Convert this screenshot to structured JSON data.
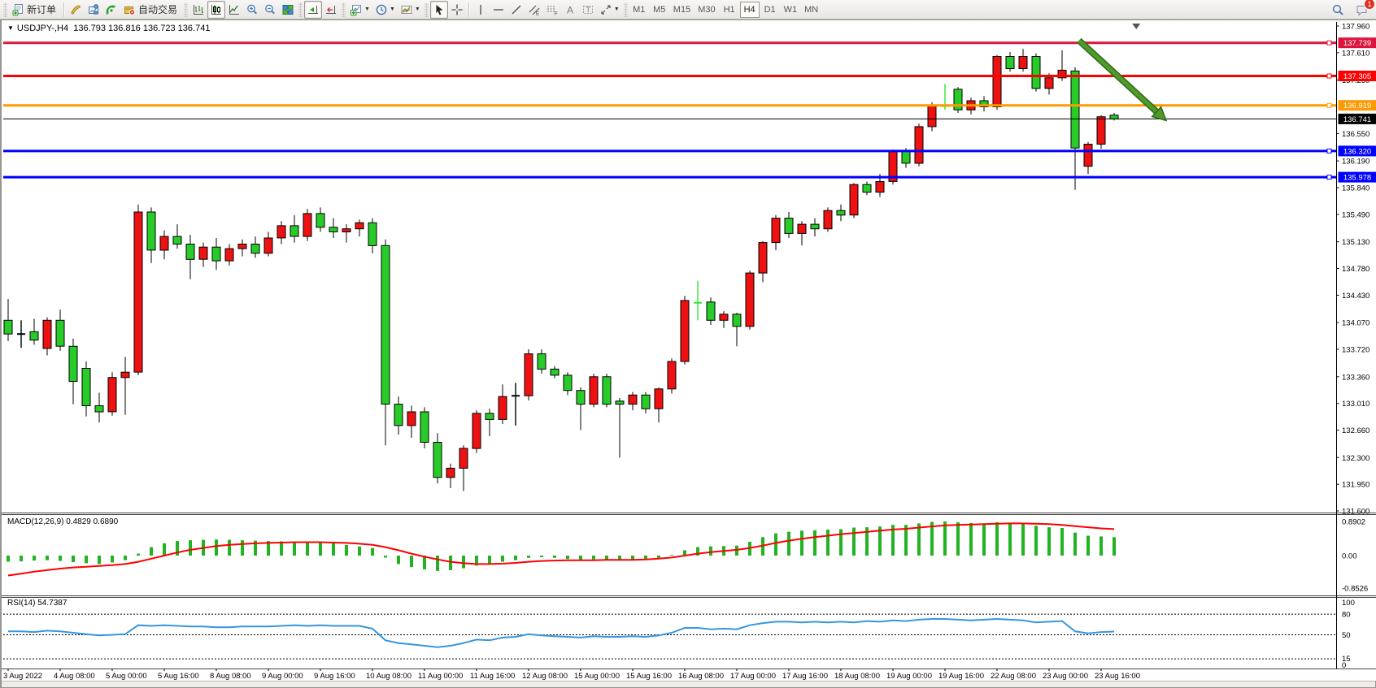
{
  "toolbar": {
    "new_order_label": "新订单",
    "auto_trading_label": "自动交易",
    "timeframes": [
      "M1",
      "M5",
      "M15",
      "M30",
      "H1",
      "H4",
      "D1",
      "W1",
      "MN"
    ],
    "active_timeframe": "H4",
    "notification_badge": "1",
    "icon_names": [
      "new-order-icon",
      "metaeditor-icon",
      "strategy-tester-icon",
      "signals-icon",
      "autotrading-icon",
      "bar-chart-icon",
      "candlestick-chart-icon",
      "line-chart-icon",
      "zoom-in-icon",
      "zoom-out-icon",
      "tile-windows-icon",
      "auto-scroll-icon",
      "chart-shift-icon",
      "new-chart-icon",
      "periods-icon",
      "templates-icon",
      "cursor-icon",
      "crosshair-icon",
      "vertical-line-icon",
      "horizontal-line-icon",
      "trendline-icon",
      "equidistant-channel-icon",
      "fibonacci-icon",
      "text-icon",
      "text-label-icon",
      "arrows-icon",
      "search-icon",
      "notifications-icon"
    ]
  },
  "chart": {
    "title_symbol": "USDJPY-,H4",
    "title_ohlc": "136.793 136.816 136.723 136.741",
    "macd_label": "MACD(12,26,9) 0.4829 0.6890",
    "rsi_label": "RSI(14) 54.7387"
  },
  "colors": {
    "up": "#ee1111",
    "down": "#28cc28",
    "doji_lime": "#35e435",
    "doji_black": "#000000",
    "wick": "#000000",
    "macd_hist": "#21b321",
    "macd_signal": "#ff0000",
    "rsi_line": "#3596e0",
    "line_crimson": "#dc143c",
    "line_red": "#ff0000",
    "line_orange": "#ff9900",
    "line_blue": "#0000ff",
    "current_price_line": "#000000",
    "arrow_green": "#4f9a2b",
    "arrow_border": "#2e6b14",
    "bg": "#ffffff",
    "axis_text": "#000000"
  },
  "chart_data": [
    {
      "type": "candlestick",
      "title": "USDJPY- H4",
      "ylim": [
        131.6,
        137.96
      ],
      "grid": false,
      "price_ticks": [
        "137.960",
        "137.610",
        "137.250",
        "136.550",
        "136.190",
        "135.840",
        "135.490",
        "135.130",
        "134.780",
        "134.430",
        "134.070",
        "133.720",
        "133.360",
        "133.010",
        "132.660",
        "132.300",
        "131.950",
        "131.600"
      ],
      "time_labels": [
        "3 Aug 2022",
        "4 Aug 08:00",
        "5 Aug 00:00",
        "5 Aug 16:00",
        "8 Aug 08:00",
        "9 Aug 00:00",
        "9 Aug 16:00",
        "10 Aug 08:00",
        "11 Aug 00:00",
        "11 Aug 16:00",
        "12 Aug 08:00",
        "15 Aug 00:00",
        "15 Aug 16:00",
        "16 Aug 08:00",
        "17 Aug 00:00",
        "17 Aug 16:00",
        "18 Aug 08:00",
        "19 Aug 00:00",
        "19 Aug 16:00",
        "22 Aug 08:00",
        "23 Aug 00:00",
        "23 Aug 16:00"
      ],
      "bars_per_label": 4,
      "candles": [
        [
          134.1,
          134.38,
          133.83,
          133.92
        ],
        [
          133.92,
          134.1,
          133.74,
          133.92
        ],
        [
          133.95,
          134.12,
          133.78,
          133.84
        ],
        [
          133.73,
          134.14,
          133.64,
          134.1
        ],
        [
          134.1,
          134.24,
          133.7,
          133.76
        ],
        [
          133.76,
          133.86,
          133.0,
          133.3
        ],
        [
          133.47,
          133.56,
          132.84,
          132.98
        ],
        [
          132.98,
          133.15,
          132.76,
          132.9
        ],
        [
          132.9,
          133.42,
          132.85,
          133.35
        ],
        [
          133.35,
          133.62,
          132.86,
          133.42
        ],
        [
          133.42,
          135.62,
          133.38,
          135.52
        ],
        [
          135.52,
          135.58,
          134.85,
          135.02
        ],
        [
          135.02,
          135.28,
          134.9,
          135.2
        ],
        [
          135.2,
          135.36,
          135.04,
          135.1
        ],
        [
          135.1,
          135.22,
          134.64,
          134.9
        ],
        [
          134.9,
          135.12,
          134.8,
          135.06
        ],
        [
          135.06,
          135.18,
          134.76,
          134.88
        ],
        [
          134.88,
          135.1,
          134.82,
          135.04
        ],
        [
          135.04,
          135.16,
          134.94,
          135.1
        ],
        [
          135.1,
          135.2,
          134.92,
          134.98
        ],
        [
          134.98,
          135.26,
          134.94,
          135.18
        ],
        [
          135.18,
          135.4,
          135.1,
          135.34
        ],
        [
          135.34,
          135.48,
          135.12,
          135.2
        ],
        [
          135.2,
          135.56,
          135.14,
          135.5
        ],
        [
          135.5,
          135.58,
          135.26,
          135.32
        ],
        [
          135.32,
          135.44,
          135.18,
          135.26
        ],
        [
          135.26,
          135.36,
          135.12,
          135.3
        ],
        [
          135.3,
          135.42,
          135.2,
          135.38
        ],
        [
          135.38,
          135.44,
          134.98,
          135.08
        ],
        [
          135.08,
          135.16,
          132.46,
          133.0
        ],
        [
          133.0,
          133.1,
          132.6,
          132.72
        ],
        [
          132.72,
          132.98,
          132.56,
          132.9
        ],
        [
          132.9,
          132.96,
          132.42,
          132.5
        ],
        [
          132.5,
          132.62,
          131.96,
          132.04
        ],
        [
          132.04,
          132.22,
          131.9,
          132.16
        ],
        [
          132.16,
          132.46,
          131.86,
          132.42
        ],
        [
          132.42,
          132.92,
          132.36,
          132.88
        ],
        [
          132.88,
          132.94,
          132.58,
          132.8
        ],
        [
          132.8,
          133.26,
          132.74,
          133.1
        ],
        [
          133.1,
          133.28,
          132.72,
          133.11
        ],
        [
          133.11,
          133.72,
          133.05,
          133.66
        ],
        [
          133.66,
          133.72,
          133.4,
          133.46
        ],
        [
          133.46,
          133.5,
          133.34,
          133.38
        ],
        [
          133.38,
          133.42,
          133.12,
          133.18
        ],
        [
          133.18,
          133.22,
          132.66,
          133.0
        ],
        [
          133.0,
          133.4,
          132.96,
          133.36
        ],
        [
          133.36,
          133.4,
          132.96,
          133.0
        ],
        [
          133.04,
          133.08,
          132.3,
          133.0
        ],
        [
          133.0,
          133.16,
          132.92,
          133.12
        ],
        [
          133.12,
          133.16,
          132.88,
          132.94
        ],
        [
          132.94,
          133.22,
          132.76,
          133.2
        ],
        [
          133.2,
          133.6,
          133.14,
          133.56
        ],
        [
          133.56,
          134.42,
          133.52,
          134.36
        ],
        [
          134.35,
          134.62,
          134.1,
          134.33
        ],
        [
          134.34,
          134.4,
          134.04,
          134.1
        ],
        [
          134.1,
          134.22,
          134.0,
          134.18
        ],
        [
          134.18,
          134.2,
          133.76,
          134.02
        ],
        [
          134.02,
          134.75,
          133.98,
          134.72
        ],
        [
          134.72,
          135.14,
          134.6,
          135.12
        ],
        [
          135.12,
          135.48,
          135.02,
          135.44
        ],
        [
          135.44,
          135.52,
          135.18,
          135.24
        ],
        [
          135.24,
          135.4,
          135.08,
          135.36
        ],
        [
          135.36,
          135.44,
          135.2,
          135.3
        ],
        [
          135.3,
          135.58,
          135.26,
          135.54
        ],
        [
          135.54,
          135.62,
          135.4,
          135.48
        ],
        [
          135.48,
          135.9,
          135.44,
          135.88
        ],
        [
          135.88,
          135.92,
          135.74,
          135.78
        ],
        [
          135.78,
          136.02,
          135.72,
          135.92
        ],
        [
          135.92,
          136.34,
          135.88,
          136.32
        ],
        [
          136.32,
          136.36,
          136.1,
          136.16
        ],
        [
          136.16,
          136.68,
          136.12,
          136.64
        ],
        [
          136.64,
          136.96,
          136.58,
          136.92
        ],
        [
          136.93,
          137.2,
          136.86,
          136.91
        ],
        [
          137.13,
          137.16,
          136.82,
          136.86
        ],
        [
          136.86,
          137.02,
          136.8,
          136.98
        ],
        [
          136.98,
          137.04,
          136.84,
          136.9
        ],
        [
          136.9,
          137.58,
          136.86,
          137.56
        ],
        [
          137.56,
          137.62,
          137.36,
          137.4
        ],
        [
          137.4,
          137.66,
          137.36,
          137.56
        ],
        [
          137.56,
          137.6,
          137.1,
          137.14
        ],
        [
          137.14,
          137.34,
          137.06,
          137.28
        ],
        [
          137.28,
          137.64,
          137.24,
          137.38
        ],
        [
          137.37,
          137.42,
          135.81,
          136.36
        ],
        [
          136.12,
          136.44,
          136.02,
          136.41
        ],
        [
          136.41,
          136.79,
          136.35,
          136.77
        ],
        [
          136.79,
          136.82,
          136.72,
          136.74
        ]
      ],
      "dojis": {
        "lime": [
          53,
          72
        ],
        "black": [
          1,
          39
        ]
      },
      "hlines": [
        {
          "label": "137.739",
          "value": 137.739,
          "color": "#dc143c"
        },
        {
          "label": "137.305",
          "value": 137.305,
          "color": "#ff0000"
        },
        {
          "label": "136.919",
          "value": 136.919,
          "color": "#ff9900"
        },
        {
          "label": "136.320",
          "value": 136.32,
          "color": "#0000ff"
        },
        {
          "label": "135.978",
          "value": 135.978,
          "color": "#0000ff"
        }
      ],
      "current_price": {
        "label": "136.741",
        "value": 136.741
      },
      "annotations": [
        {
          "type": "arrow",
          "from_bar": 82.3,
          "from_price": 137.77,
          "to_bar": 89.0,
          "to_price": 136.72,
          "color": "#4f9a2b"
        },
        {
          "type": "shift-marker",
          "bar": 86.7
        }
      ]
    },
    {
      "type": "bar",
      "name": "MACD(12,26,9)",
      "current_macd": 0.4829,
      "current_signal": 0.689,
      "axis_labels": [
        "0.8902",
        "0.00",
        "-0.8526"
      ],
      "axis_values": [
        0.8902,
        0.0,
        -0.8526
      ],
      "values": [
        -0.16,
        -0.15,
        -0.13,
        -0.12,
        -0.14,
        -0.17,
        -0.2,
        -0.22,
        -0.18,
        -0.12,
        0.05,
        0.22,
        0.32,
        0.38,
        0.4,
        0.41,
        0.42,
        0.41,
        0.4,
        0.39,
        0.38,
        0.37,
        0.36,
        0.35,
        0.34,
        0.32,
        0.28,
        0.24,
        0.2,
        -0.05,
        -0.22,
        -0.3,
        -0.36,
        -0.4,
        -0.38,
        -0.33,
        -0.26,
        -0.22,
        -0.16,
        -0.12,
        -0.06,
        -0.04,
        -0.06,
        -0.09,
        -0.12,
        -0.1,
        -0.1,
        -0.12,
        -0.1,
        -0.1,
        -0.06,
        0.02,
        0.14,
        0.22,
        0.24,
        0.25,
        0.26,
        0.36,
        0.48,
        0.58,
        0.62,
        0.65,
        0.66,
        0.68,
        0.69,
        0.73,
        0.74,
        0.76,
        0.8,
        0.8,
        0.84,
        0.88,
        0.89,
        0.87,
        0.85,
        0.84,
        0.87,
        0.86,
        0.84,
        0.78,
        0.74,
        0.72,
        0.6,
        0.52,
        0.5,
        0.48
      ],
      "signal": [
        -0.52,
        -0.47,
        -0.42,
        -0.38,
        -0.34,
        -0.31,
        -0.29,
        -0.27,
        -0.25,
        -0.22,
        -0.16,
        -0.08,
        0.0,
        0.08,
        0.15,
        0.2,
        0.25,
        0.28,
        0.3,
        0.32,
        0.33,
        0.34,
        0.35,
        0.35,
        0.35,
        0.34,
        0.33,
        0.31,
        0.28,
        0.22,
        0.14,
        0.05,
        -0.03,
        -0.1,
        -0.16,
        -0.2,
        -0.22,
        -0.22,
        -0.21,
        -0.19,
        -0.16,
        -0.14,
        -0.13,
        -0.12,
        -0.12,
        -0.12,
        -0.11,
        -0.11,
        -0.11,
        -0.1,
        -0.08,
        -0.05,
        0.0,
        0.05,
        0.09,
        0.12,
        0.15,
        0.2,
        0.26,
        0.33,
        0.39,
        0.44,
        0.48,
        0.52,
        0.56,
        0.59,
        0.62,
        0.65,
        0.68,
        0.7,
        0.73,
        0.76,
        0.79,
        0.8,
        0.81,
        0.82,
        0.83,
        0.84,
        0.84,
        0.83,
        0.82,
        0.8,
        0.77,
        0.74,
        0.71,
        0.69
      ]
    },
    {
      "type": "line",
      "name": "RSI(14)",
      "current": 54.7387,
      "levels": [
        80,
        50,
        15
      ],
      "axis_labels": [
        "100",
        "80",
        "50",
        "15",
        "0"
      ],
      "axis_values": [
        100,
        80,
        50,
        15,
        0
      ],
      "values": [
        55,
        55,
        54,
        56,
        55,
        53,
        51,
        49,
        50,
        51,
        64,
        63,
        64,
        63,
        62,
        62,
        61,
        61,
        62,
        62,
        62,
        63,
        64,
        63,
        64,
        63,
        63,
        63,
        59,
        42,
        38,
        36,
        34,
        32,
        34,
        38,
        43,
        42,
        46,
        47,
        51,
        49,
        48,
        47,
        46,
        48,
        47,
        47,
        48,
        47,
        49,
        53,
        60,
        60,
        58,
        59,
        58,
        64,
        67,
        69,
        69,
        68,
        69,
        68,
        69,
        68,
        70,
        69,
        71,
        70,
        72,
        73,
        73,
        72,
        71,
        72,
        73,
        72,
        71,
        68,
        69,
        70,
        55,
        52,
        54,
        54.74
      ]
    }
  ]
}
